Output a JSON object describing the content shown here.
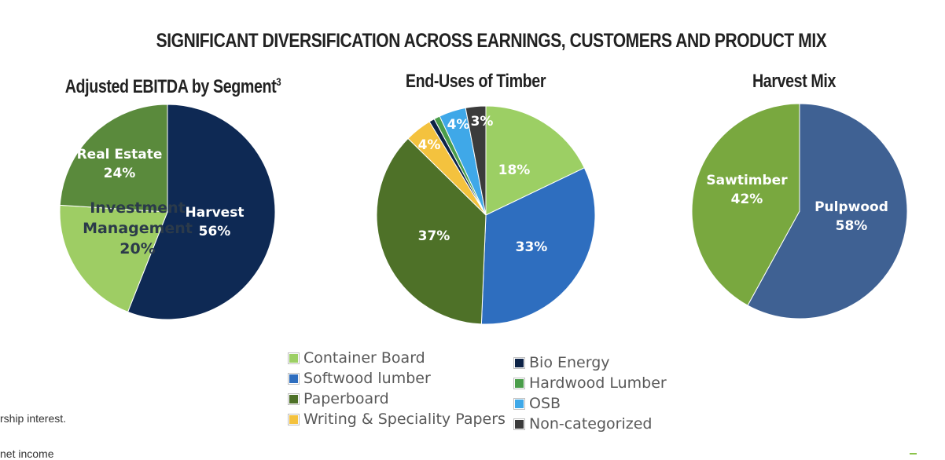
{
  "header": {
    "title": "SIGNIFICANT DIVERSIFICATION ACROSS EARNINGS, CUSTOMERS AND PRODUCT MIX"
  },
  "footnotes": [
    "rship interest.",
    "net income"
  ],
  "chart_data": [
    {
      "type": "pie",
      "title": "Adjusted EBITDA by Segment",
      "title_superscript": "3",
      "slices": [
        {
          "label": "Harvest",
          "value": 56,
          "display": "56%",
          "color": "#0e2954"
        },
        {
          "label": "Investment Management",
          "value": 20,
          "display": "20%",
          "color": "#9ecd64"
        },
        {
          "label": "Real Estate",
          "value": 24,
          "display": "24%",
          "color": "#5a8a3c"
        }
      ]
    },
    {
      "type": "pie",
      "title": "End-Uses of Timber",
      "slices": [
        {
          "label": "Container Board",
          "value": 18,
          "display": "18%",
          "color": "#9ccf64"
        },
        {
          "label": "Softwood lumber",
          "value": 33,
          "display": "33%",
          "color": "#2e6ebf"
        },
        {
          "label": "Paperboard",
          "value": 37,
          "display": "37%",
          "color": "#4e7128"
        },
        {
          "label": "Writing & Speciality Papers",
          "value": 4,
          "display": "4%",
          "color": "#f4c23e"
        },
        {
          "label": "Bio Energy",
          "value": 0.8,
          "display": "",
          "color": "#0d2347"
        },
        {
          "label": "Hardwood Lumber",
          "value": 0.9,
          "display": "",
          "color": "#4a9d4a"
        },
        {
          "label": "OSB",
          "value": 4,
          "display": "4%",
          "color": "#3fa8e8"
        },
        {
          "label": "Non-categorized",
          "value": 3,
          "display": "3%",
          "color": "#3b3b3b"
        }
      ],
      "legend": {
        "columns": [
          [
            "Container Board",
            "Softwood lumber",
            "Paperboard",
            "Writing & Speciality Papers"
          ],
          [
            "Bio Energy",
            "Hardwood Lumber",
            "OSB",
            "Non-categorized"
          ]
        ]
      }
    },
    {
      "type": "pie",
      "title": "Harvest Mix",
      "slices": [
        {
          "label": "Pulpwood",
          "value": 58,
          "display": "58%",
          "color": "#3f6193"
        },
        {
          "label": "Sawtimber",
          "value": 42,
          "display": "42%",
          "color": "#79a83f"
        }
      ]
    }
  ]
}
